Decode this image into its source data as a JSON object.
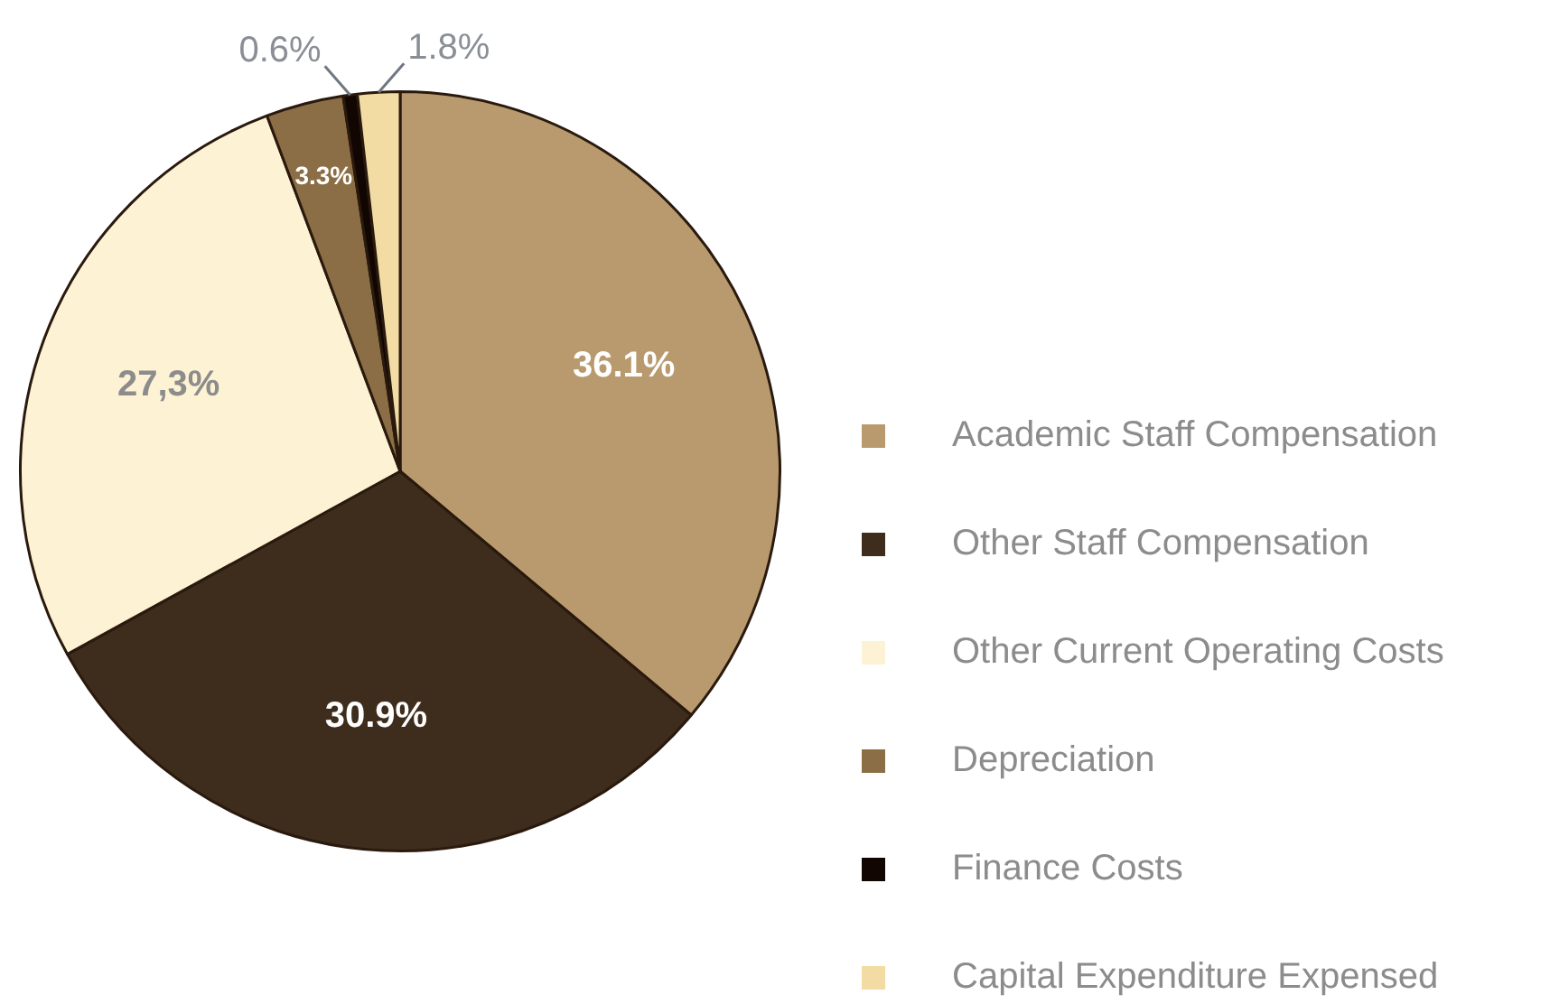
{
  "chart_data": {
    "type": "pie",
    "categories": [
      "Academic Staff Compensation",
      "Other Staff Compensation",
      "Other Current Operating Costs",
      "Depreciation",
      "Finance Costs",
      "Capital Expenditure Expensed"
    ],
    "values": [
      36.1,
      30.9,
      27.3,
      3.3,
      0.6,
      1.8
    ],
    "colors": [
      "#b89a6e",
      "#3e2d1c",
      "#fdf3d4",
      "#8b6e45",
      "#120603",
      "#f2dca4"
    ],
    "value_labels": [
      "36.1%",
      "30.9%",
      "27,3%",
      "3.3%",
      "0.6%",
      "1.8%"
    ],
    "legend": "right"
  }
}
